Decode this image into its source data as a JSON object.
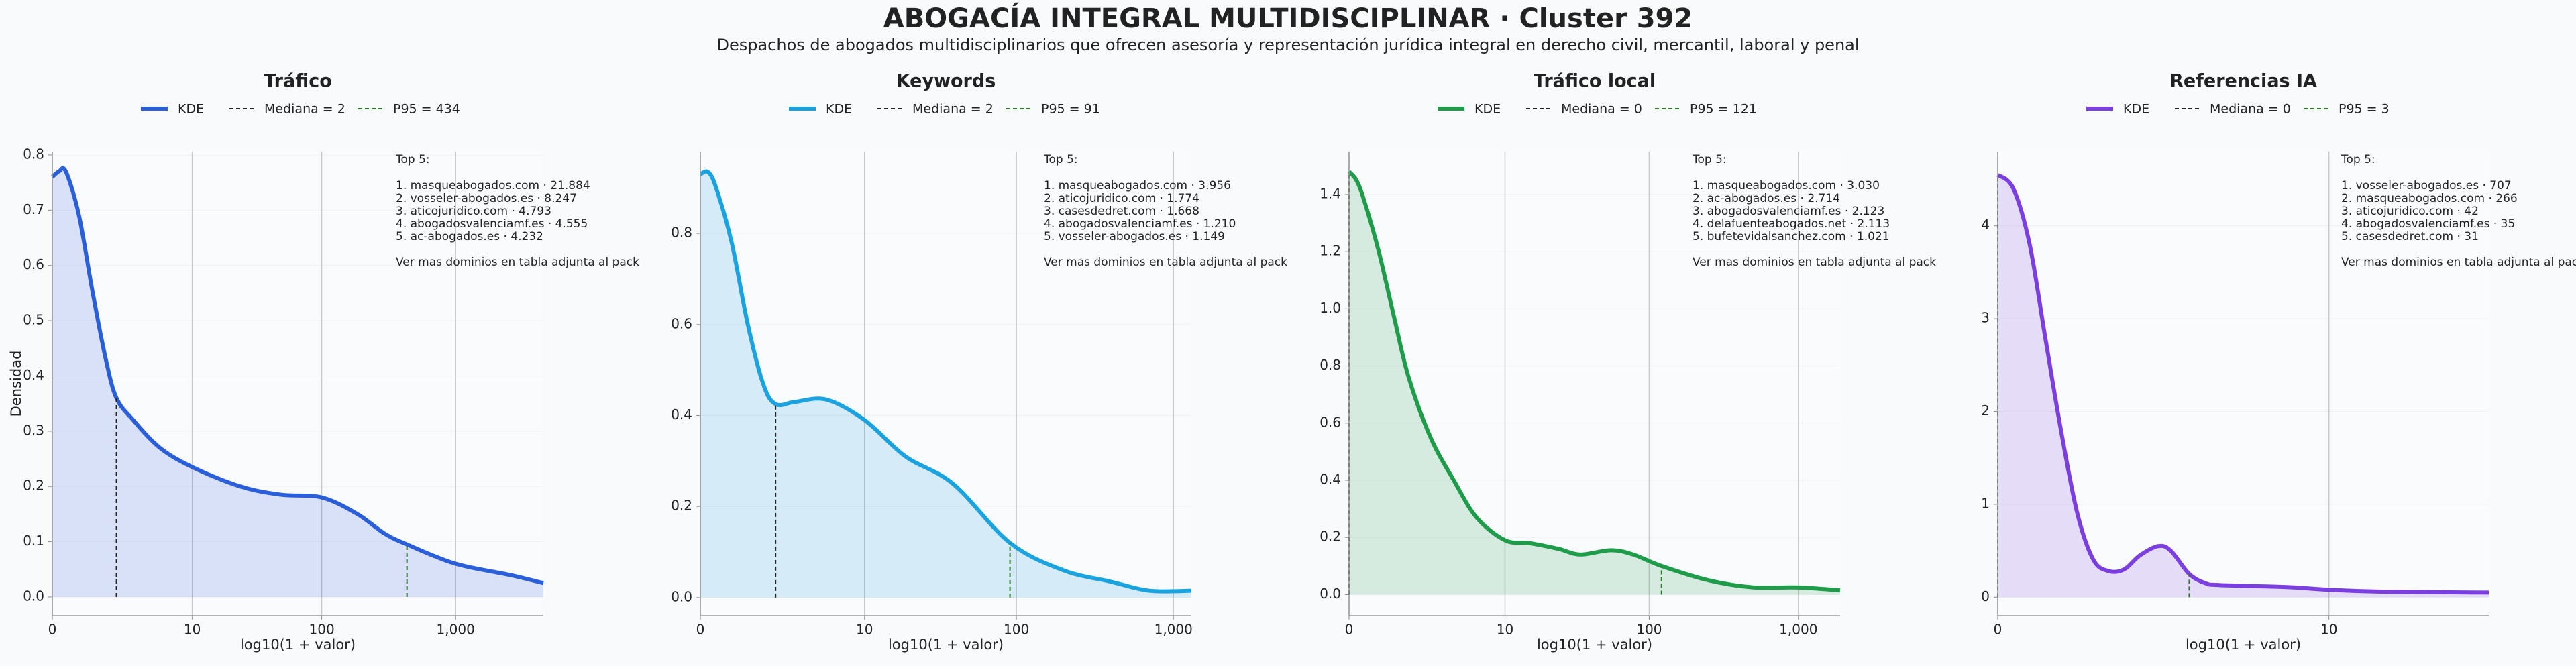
{
  "title": "ABOGACÍA INTEGRAL MULTIDISCIPLINAR · Cluster 392",
  "subtitle": "Despachos de abogados multidisciplinarios que ofrecen asesoría y representación jurídica integral en derecho civil, mercantil, laboral y penal",
  "chart_data": [
    {
      "type": "line",
      "title": "Tráfico",
      "xlabel": "log10(1 + valor)",
      "ylabel": "Densidad",
      "xscale": "log1p",
      "grid": true,
      "xlim": [
        0,
        4500
      ],
      "xticks": [
        0,
        10,
        100,
        {
          "value": 1000,
          "label": "1,000"
        }
      ],
      "ylim": [
        -0.034,
        0.806
      ],
      "yticks": [
        {
          "value": 0,
          "label": "0.0"
        },
        0.1,
        0.2,
        0.3,
        0.4,
        0.5,
        0.6,
        0.7,
        0.8
      ],
      "x": [
        0,
        0.12,
        0.26,
        0.58,
        1,
        1.5,
        2,
        3,
        5.3,
        10,
        24,
        49,
        100,
        185,
        294,
        434,
        1000,
        2500,
        4500
      ],
      "series": [
        {
          "name": "KDE",
          "color": "#2b5fd9",
          "values": [
            0.76,
            0.77,
            0.77,
            0.69,
            0.55,
            0.43,
            0.36,
            0.32,
            0.27,
            0.235,
            0.2,
            0.185,
            0.18,
            0.15,
            0.115,
            0.095,
            0.06,
            0.04,
            0.025
          ]
        }
      ],
      "median": {
        "label": "Mediana = 2",
        "value": 2,
        "color": "#222222"
      },
      "p95": {
        "label": "P95 = 434",
        "value": 434,
        "color": "#2a7a2a"
      },
      "annotation": {
        "heading": "Top 5:",
        "items": [
          "1. masqueabogados.com · 21.884",
          "2. vosseler-abogados.es · 8.247",
          "3. aticojuridico.com · 4.793",
          "4. abogadosvalenciamf.es · 4.555",
          "5. ac-abogados.es · 4.232"
        ],
        "footer": "Ver mas dominios en tabla adjunta al pack"
      }
    },
    {
      "type": "line",
      "title": "Keywords",
      "xlabel": "log10(1 + valor)",
      "xscale": "log1p",
      "grid": true,
      "xlim": [
        0,
        1300
      ],
      "xticks": [
        0,
        10,
        100,
        {
          "value": 1000,
          "label": "1,000"
        }
      ],
      "ylim": [
        -0.04,
        0.98
      ],
      "yticks": [
        {
          "value": 0,
          "label": "0.0"
        },
        0.2,
        0.4,
        0.6,
        0.8
      ],
      "x": [
        0,
        0.12,
        0.26,
        0.58,
        1,
        1.5,
        2,
        3,
        5.3,
        10,
        19,
        39,
        91,
        199,
        397,
        707,
        1300
      ],
      "series": [
        {
          "name": "KDE",
          "color": "#1ba3e0",
          "values": [
            0.93,
            0.935,
            0.9,
            0.78,
            0.6,
            0.47,
            0.425,
            0.43,
            0.435,
            0.39,
            0.31,
            0.25,
            0.12,
            0.06,
            0.035,
            0.015,
            0.015
          ]
        }
      ],
      "median": {
        "label": "Mediana = 2",
        "value": 2,
        "color": "#222222"
      },
      "p95": {
        "label": "P95 = 91",
        "value": 91,
        "color": "#2a7a2a"
      },
      "annotation": {
        "heading": "Top 5:",
        "items": [
          "1. masqueabogados.com · 3.956",
          "2. aticojuridico.com · 1.774",
          "3. casesdedret.com · 1.668",
          "4. abogadosvalenciamf.es · 1.210",
          "5. vosseler-abogados.es · 1.149"
        ],
        "footer": "Ver mas dominios en tabla adjunta al pack"
      }
    },
    {
      "type": "line",
      "title": "Tráfico local",
      "xlabel": "log10(1 + valor)",
      "xscale": "log1p",
      "grid": true,
      "xlim": [
        0,
        1900
      ],
      "xticks": [
        0,
        10,
        100,
        {
          "value": 1000,
          "label": "1,000"
        }
      ],
      "ylim": [
        -0.074,
        1.55
      ],
      "yticks": [
        {
          "value": 0,
          "label": "0.0"
        },
        0.2,
        0.4,
        0.6,
        0.8,
        {
          "value": 1,
          "label": "1.0"
        },
        1.2,
        1.4
      ],
      "x": [
        0,
        0.12,
        0.26,
        0.58,
        1,
        1.5,
        2.5,
        4,
        6.1,
        10,
        15,
        24,
        34,
        55,
        78,
        121,
        250,
        500,
        1000,
        1900
      ],
      "series": [
        {
          "name": "KDE",
          "color": "#1e9c4a",
          "values": [
            1.48,
            1.45,
            1.38,
            1.2,
            0.97,
            0.76,
            0.55,
            0.4,
            0.27,
            0.19,
            0.18,
            0.16,
            0.14,
            0.155,
            0.14,
            0.1,
            0.05,
            0.025,
            0.025,
            0.015
          ]
        }
      ],
      "median": {
        "label": "Mediana = 0",
        "value": 0,
        "color": "#222222"
      },
      "p95": {
        "label": "P95 = 121",
        "value": 121,
        "color": "#2a7a2a"
      },
      "annotation": {
        "heading": "Top 5:",
        "items": [
          "1. masqueabogados.com · 3.030",
          "2. ac-abogados.es · 2.714",
          "3. abogadosvalenciamf.es · 2.123",
          "4. delafuenteabogados.net · 2.113",
          "5. bufetevidalsanchez.com · 1.021"
        ],
        "footer": "Ver mas dominios en tabla adjunta al pack"
      }
    },
    {
      "type": "line",
      "title": "Referencias IA",
      "xlabel": "log10(1 + valor)",
      "xscale": "log1p",
      "grid": true,
      "xlim": [
        0,
        34
      ],
      "xticks": [
        0,
        10
      ],
      "ylim": [
        -0.2,
        4.8
      ],
      "yticks": [
        0,
        1,
        2,
        3,
        4
      ],
      "x": [
        0,
        0.12,
        0.26,
        0.41,
        0.58,
        0.78,
        1,
        1.24,
        1.5,
        1.8,
        2.2,
        2.5,
        3,
        3.5,
        4,
        7,
        10,
        15,
        34
      ],
      "series": [
        {
          "name": "KDE",
          "color": "#7b3fe0",
          "values": [
            4.55,
            4.4,
            3.8,
            2.8,
            1.8,
            0.9,
            0.4,
            0.28,
            0.3,
            0.45,
            0.55,
            0.5,
            0.25,
            0.15,
            0.13,
            0.11,
            0.08,
            0.06,
            0.05
          ]
        }
      ],
      "median": {
        "label": "Mediana = 0",
        "value": 0,
        "color": "#222222"
      },
      "p95": {
        "label": "P95 = 3",
        "value": 3,
        "color": "#2a7a2a"
      },
      "annotation": {
        "heading": "Top 5:",
        "items": [
          "1. vosseler-abogados.es · 707",
          "2. masqueabogados.com · 266",
          "3. aticojuridico.com · 42",
          "4. abogadosvalenciamf.es · 35",
          "5. casesdedret.com · 31"
        ],
        "footer": "Ver mas dominios en tabla adjunta al pack"
      }
    }
  ]
}
